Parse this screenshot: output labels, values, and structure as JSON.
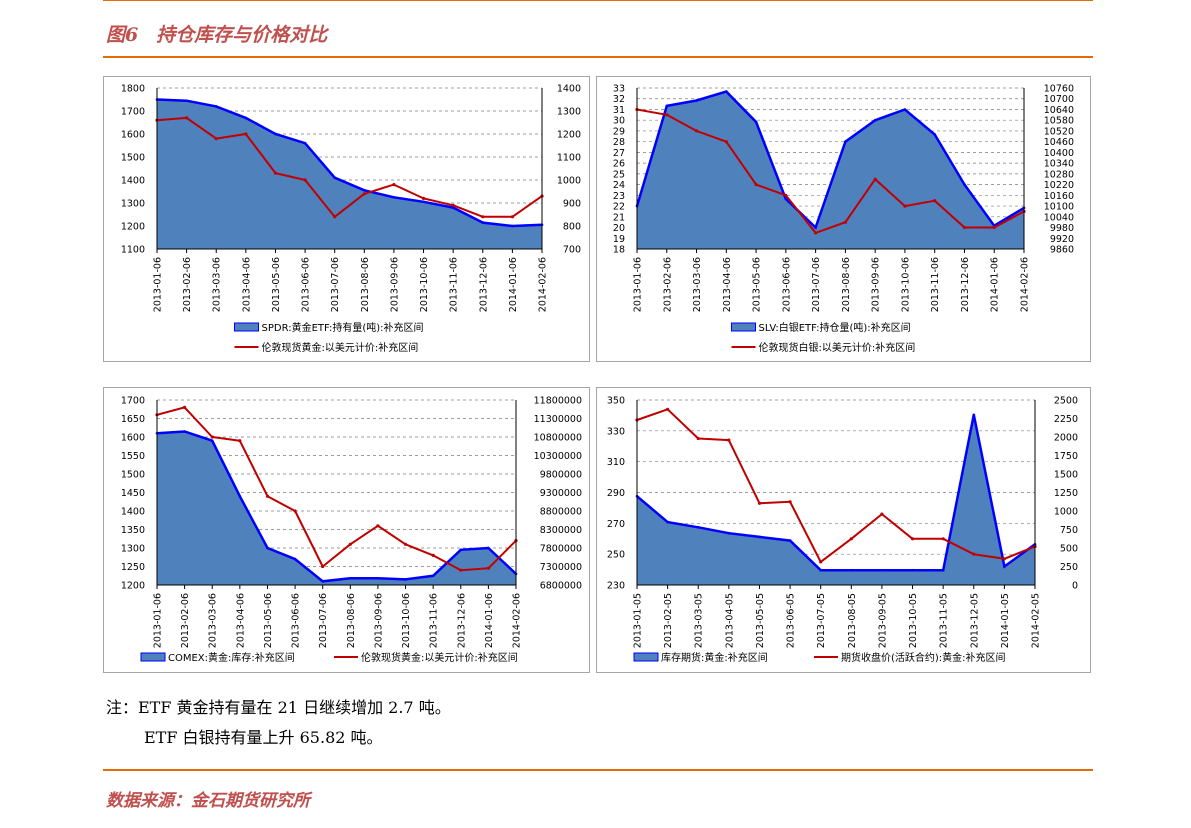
{
  "header": {
    "figure_no": "图6",
    "title": "持仓库存与价格对比"
  },
  "notes": {
    "line1": "注：ETF 黄金持有量在 21 日继续增加 2.7 吨。",
    "line2": "ETF 白银持有量上升 65.82 吨。"
  },
  "footer": {
    "source": "数据来源：金石期货研究所"
  },
  "colors": {
    "accent": "#e36c09",
    "title": "#c0504d",
    "area_fill": "#4f81bd",
    "area_edge": "#0000ff",
    "line": "#c00000"
  },
  "chart_data": [
    {
      "type": "area",
      "x": [
        "2013-01-06",
        "2013-02-06",
        "2013-03-06",
        "2013-04-06",
        "2013-05-06",
        "2013-06-06",
        "2013-07-06",
        "2013-08-06",
        "2013-09-06",
        "2013-10-06",
        "2013-11-06",
        "2013-12-06",
        "2014-01-06",
        "2014-02-06"
      ],
      "ylim": [
        1100,
        1800
      ],
      "yticks": [
        1100,
        1200,
        1300,
        1400,
        1500,
        1600,
        1700,
        1800
      ],
      "y2lim": [
        700,
        1400
      ],
      "y2ticks": [
        700,
        800,
        900,
        1000,
        1100,
        1200,
        1300,
        1400
      ],
      "series": [
        {
          "name": "SPDR:黄金ETF:持有量(吨):补充区间",
          "type": "area",
          "axis": "right",
          "values": [
            1350,
            1345,
            1320,
            1270,
            1200,
            1160,
            1010,
            955,
            925,
            905,
            880,
            815,
            800,
            805
          ]
        },
        {
          "name": "伦敦现货黄金:以美元计价:补充区间",
          "type": "line",
          "axis": "left",
          "values": [
            1660,
            1670,
            1580,
            1600,
            1430,
            1400,
            1240,
            1340,
            1380,
            1320,
            1290,
            1240,
            1240,
            1330
          ]
        }
      ]
    },
    {
      "type": "area",
      "x": [
        "2013-01-06",
        "2013-02-06",
        "2013-03-06",
        "2013-04-06",
        "2013-05-06",
        "2013-06-06",
        "2013-07-06",
        "2013-08-06",
        "2013-09-06",
        "2013-10-06",
        "2013-11-06",
        "2013-12-06",
        "2014-01-06",
        "2014-02-06"
      ],
      "ylim": [
        18,
        33
      ],
      "yticks": [
        18,
        19,
        20,
        21,
        22,
        23,
        24,
        25,
        26,
        27,
        28,
        29,
        30,
        31,
        32,
        33
      ],
      "y2lim": [
        9860,
        10760
      ],
      "y2ticks": [
        9860,
        9920,
        9980,
        10040,
        10100,
        10160,
        10220,
        10280,
        10340,
        10400,
        10460,
        10520,
        10580,
        10640,
        10700,
        10760
      ],
      "series": [
        {
          "name": "SLV:白银ETF:持仓量(吨):补充区间",
          "type": "area",
          "axis": "right",
          "values": [
            10100,
            10660,
            10690,
            10740,
            10570,
            10140,
            9980,
            10460,
            10580,
            10640,
            10500,
            10220,
            9990,
            10090
          ]
        },
        {
          "name": "伦敦现货白银:以美元计价:补充区间",
          "type": "line",
          "axis": "left",
          "values": [
            31.0,
            30.5,
            29.0,
            28.0,
            24.0,
            23.0,
            19.5,
            20.5,
            24.5,
            22.0,
            22.5,
            20.0,
            20.0,
            21.5
          ]
        }
      ]
    },
    {
      "type": "area",
      "x": [
        "2013-01-06",
        "2013-02-06",
        "2013-03-06",
        "2013-04-06",
        "2013-05-06",
        "2013-06-06",
        "2013-07-06",
        "2013-08-06",
        "2013-09-06",
        "2013-10-06",
        "2013-11-06",
        "2013-12-06",
        "2014-01-06",
        "2014-02-06"
      ],
      "ylim": [
        1200,
        1700
      ],
      "yticks": [
        1200,
        1250,
        1300,
        1350,
        1400,
        1450,
        1500,
        1550,
        1600,
        1650,
        1700
      ],
      "y2lim": [
        6800000,
        11800000
      ],
      "y2ticks": [
        6800000,
        7300000,
        7800000,
        8300000,
        8800000,
        9300000,
        9800000,
        10300000,
        10800000,
        11300000,
        11800000
      ],
      "series": [
        {
          "name": "COMEX:黄金:库存:补充区间",
          "type": "area",
          "axis": "right",
          "values": [
            10900000,
            10950000,
            10700000,
            9200000,
            7800000,
            7500000,
            6900000,
            6980000,
            6980000,
            6950000,
            7050000,
            7750000,
            7800000,
            7100000
          ]
        },
        {
          "name": "伦敦现货黄金:以美元计价:补充区间",
          "type": "line",
          "axis": "left",
          "values": [
            1660,
            1680,
            1600,
            1590,
            1440,
            1400,
            1250,
            1310,
            1360,
            1310,
            1280,
            1240,
            1245,
            1320
          ]
        }
      ]
    },
    {
      "type": "area",
      "x": [
        "2013-01-05",
        "2013-02-05",
        "2013-03-05",
        "2013-04-05",
        "2013-05-05",
        "2013-06-05",
        "2013-07-05",
        "2013-08-05",
        "2013-09-05",
        "2013-10-05",
        "2013-11-05",
        "2013-12-05",
        "2014-01-05",
        "2014-02-05"
      ],
      "ylim": [
        230,
        350
      ],
      "yticks": [
        230,
        250,
        270,
        290,
        310,
        330,
        350
      ],
      "y2lim": [
        0,
        2500
      ],
      "y2ticks": [
        0,
        250,
        500,
        750,
        1000,
        1250,
        1500,
        1750,
        2000,
        2250,
        2500
      ],
      "series": [
        {
          "name": "库存期货:黄金:补充区间",
          "type": "area",
          "axis": "right",
          "values": [
            1200,
            850,
            780,
            700,
            650,
            600,
            200,
            200,
            200,
            200,
            200,
            2300,
            250,
            550
          ]
        },
        {
          "name": "期货收盘价(活跃合约):黄金:补充区间",
          "type": "line",
          "axis": "left",
          "values": [
            337,
            344,
            325,
            324,
            283,
            284,
            245,
            260,
            276,
            260,
            260,
            250,
            247,
            255
          ]
        }
      ]
    }
  ]
}
